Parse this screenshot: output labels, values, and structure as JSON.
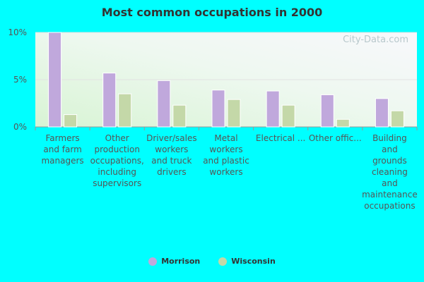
{
  "chart_data": {
    "type": "bar",
    "title": "Most common occupations in 2000",
    "categories": [
      [
        "Farmers",
        "and farm",
        "managers"
      ],
      [
        "Other",
        "production",
        "occupations,",
        "including",
        "supervisors"
      ],
      [
        "Driver/sales",
        "workers",
        "and truck",
        "drivers"
      ],
      [
        "Metal",
        "workers",
        "and plastic",
        "workers"
      ],
      [
        "Electrical ..."
      ],
      [
        "Other offic..."
      ],
      [
        "Building",
        "and",
        "grounds",
        "cleaning",
        "and",
        "maintenance",
        "occupations"
      ]
    ],
    "series": [
      {
        "name": "Morrison",
        "color": "#c0a8dc",
        "values": [
          10.0,
          5.7,
          4.9,
          3.9,
          3.8,
          3.4,
          3.0
        ]
      },
      {
        "name": "Wisconsin",
        "color": "#c4d8a8",
        "values": [
          1.3,
          3.5,
          2.3,
          2.9,
          2.3,
          0.8,
          1.7
        ]
      }
    ],
    "ylim": [
      0,
      10
    ],
    "yticks": [
      "0%",
      "5%",
      "10%"
    ],
    "grid": true,
    "legend_position": "bottom-center",
    "watermark": "City-Data.com"
  }
}
